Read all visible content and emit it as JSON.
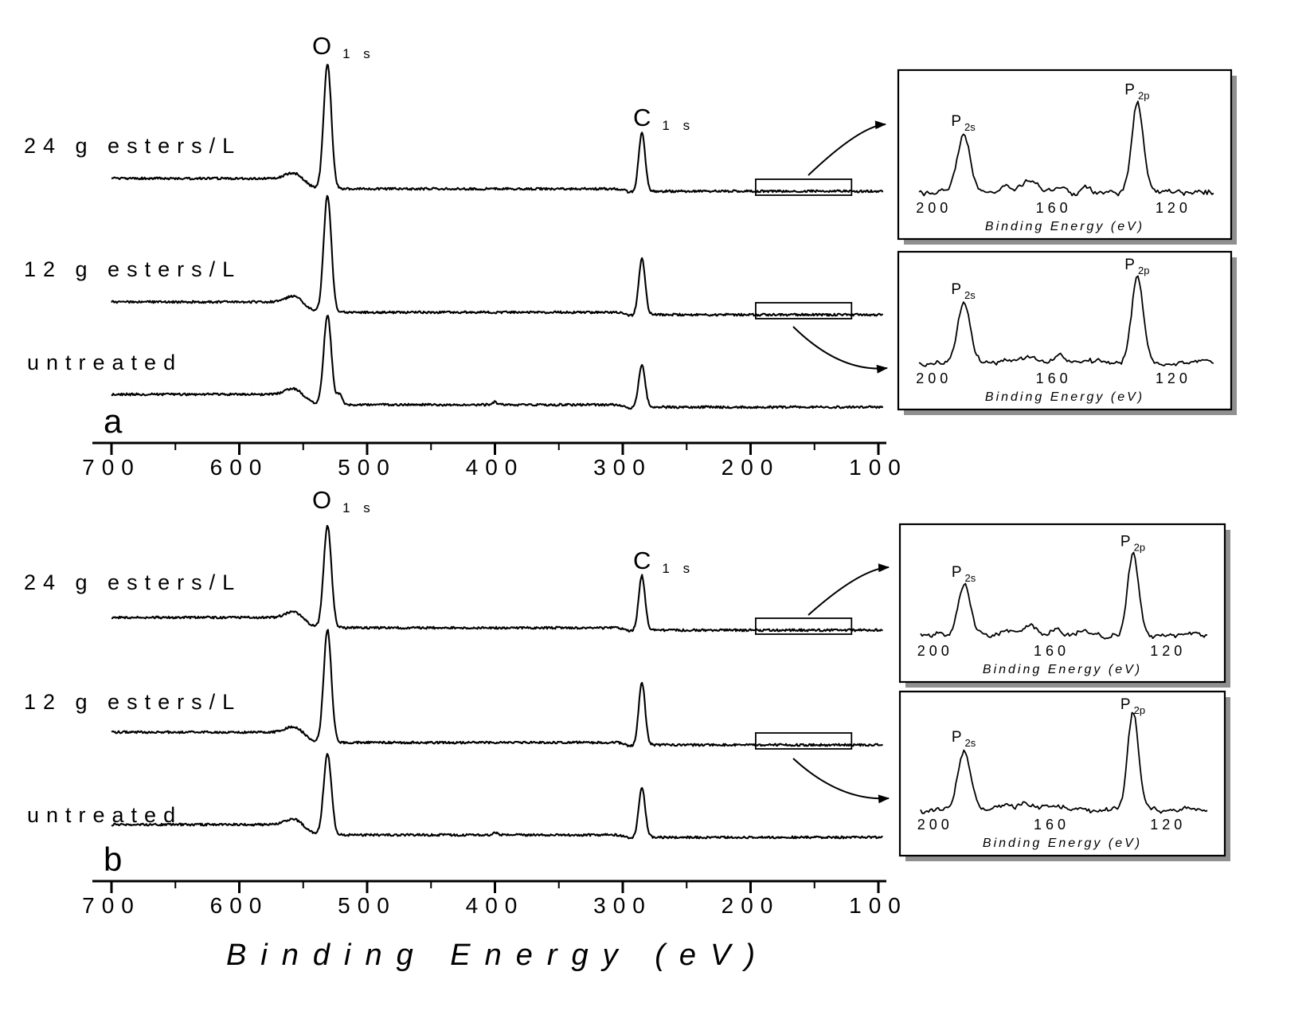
{
  "figure": {
    "xlabel": "Binding Energy (eV)",
    "background_color": "#ffffff",
    "line_color": "#000000"
  },
  "chart_data": [
    {
      "type": "line",
      "panel_label": "a",
      "x_range": [
        700,
        95
      ],
      "x_ticks": [
        700,
        600,
        500,
        400,
        300,
        200,
        100
      ],
      "x_axis_unit": "eV",
      "grid": false,
      "series": [
        {
          "label": "24 g esters/L",
          "peaks": [
            {
              "name": "O 1s",
              "binding_energy_eV": 531,
              "relative_intensity": 0.95,
              "width_eV": 3.0
            },
            {
              "name": "C 1s",
              "binding_energy_eV": 285,
              "relative_intensity": 0.44,
              "width_eV": 2.5
            }
          ],
          "zoom_region_eV": [
            196,
            121
          ]
        },
        {
          "label": "12 g esters/L",
          "peaks": [
            {
              "name": "O 1s",
              "binding_energy_eV": 531,
              "relative_intensity": 0.89,
              "width_eV": 3.0
            },
            {
              "name": "C 1s",
              "binding_energy_eV": 285,
              "relative_intensity": 0.42,
              "width_eV": 2.5
            }
          ],
          "zoom_region_eV": [
            196,
            121
          ]
        },
        {
          "label": "untreated",
          "peaks": [
            {
              "name": "O 1s",
              "binding_energy_eV": 531,
              "relative_intensity": 0.68,
              "width_eV": 3.0
            },
            {
              "name": "shoulder",
              "binding_energy_eV": 521.5,
              "relative_intensity": 0.08,
              "width_eV": 2.2
            },
            {
              "name": "N 1s trace",
              "binding_energy_eV": 400,
              "relative_intensity": 0.02,
              "width_eV": 2.0
            },
            {
              "name": "C 1s",
              "binding_energy_eV": 285,
              "relative_intensity": 0.32,
              "width_eV": 2.5
            }
          ]
        }
      ],
      "peak_annotations": [
        {
          "element": "O",
          "orbital": "1 s"
        },
        {
          "element": "C",
          "orbital": "1 s"
        }
      ],
      "insets": [
        {
          "x_ticks": [
            200,
            160,
            120
          ],
          "xlabel": "Binding Energy (eV)",
          "minor_structure": 1.0,
          "peaks": [
            {
              "label": "P 2s",
              "binding_energy_eV": 190,
              "relative_intensity": 0.52,
              "width_eV": 2.1
            },
            {
              "label": "P 2p",
              "binding_energy_eV": 132,
              "relative_intensity": 0.8,
              "width_eV": 1.9
            }
          ]
        },
        {
          "x_ticks": [
            200,
            160,
            120
          ],
          "xlabel": "Binding Energy (eV)",
          "minor_structure": 0.7,
          "peaks": [
            {
              "label": "P 2s",
              "binding_energy_eV": 190,
              "relative_intensity": 0.6,
              "width_eV": 2.1
            },
            {
              "label": "P 2p",
              "binding_energy_eV": 132,
              "relative_intensity": 0.85,
              "width_eV": 1.9
            }
          ]
        }
      ]
    },
    {
      "type": "line",
      "panel_label": "b",
      "x_range": [
        700,
        95
      ],
      "x_ticks": [
        700,
        600,
        500,
        400,
        300,
        200,
        100
      ],
      "x_axis_unit": "eV",
      "grid": false,
      "series": [
        {
          "label": "24 g esters/L",
          "peaks": [
            {
              "name": "O 1s",
              "binding_energy_eV": 531,
              "relative_intensity": 0.78,
              "width_eV": 3.0
            },
            {
              "name": "C 1s",
              "binding_energy_eV": 285,
              "relative_intensity": 0.41,
              "width_eV": 2.5
            }
          ],
          "zoom_region_eV": [
            196,
            121
          ]
        },
        {
          "label": "12 g esters/L",
          "peaks": [
            {
              "name": "O 1s",
              "binding_energy_eV": 531,
              "relative_intensity": 0.86,
              "width_eV": 3.0
            },
            {
              "name": "C 1s",
              "binding_energy_eV": 285,
              "relative_intensity": 0.47,
              "width_eV": 2.5
            }
          ],
          "zoom_region_eV": [
            196,
            121
          ]
        },
        {
          "label": "untreated",
          "peaks": [
            {
              "name": "O 1s",
              "binding_energy_eV": 531,
              "relative_intensity": 0.62,
              "width_eV": 3.0
            },
            {
              "name": "N 1s trace",
              "binding_energy_eV": 400,
              "relative_intensity": 0.02,
              "width_eV": 2.0
            },
            {
              "name": "C 1s",
              "binding_energy_eV": 285,
              "relative_intensity": 0.38,
              "width_eV": 2.5
            }
          ]
        }
      ],
      "peak_annotations": [
        {
          "element": "O",
          "orbital": "1 s"
        },
        {
          "element": "C",
          "orbital": "1 s"
        }
      ],
      "insets": [
        {
          "x_ticks": [
            200,
            160,
            120
          ],
          "xlabel": "Binding Energy (eV)",
          "minor_structure": 1.0,
          "peaks": [
            {
              "label": "P 2s",
              "binding_energy_eV": 190,
              "relative_intensity": 0.5,
              "width_eV": 2.1
            },
            {
              "label": "P 2p",
              "binding_energy_eV": 132,
              "relative_intensity": 0.8,
              "width_eV": 1.9
            }
          ]
        },
        {
          "x_ticks": [
            200,
            160,
            120
          ],
          "xlabel": "Binding Energy (eV)",
          "minor_structure": 0.5,
          "peaks": [
            {
              "label": "P 2s",
              "binding_energy_eV": 190,
              "relative_intensity": 0.55,
              "width_eV": 2.1
            },
            {
              "label": "P 2p",
              "binding_energy_eV": 132,
              "relative_intensity": 0.88,
              "width_eV": 1.9
            }
          ]
        }
      ]
    }
  ]
}
